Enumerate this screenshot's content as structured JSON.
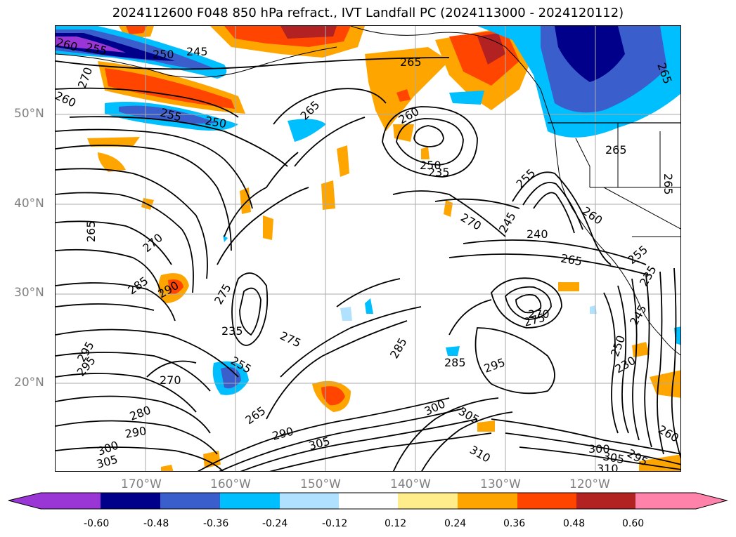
{
  "title": "2024112600 F048 850 hPa refract., IVT Landfall PC (2024113000 - 2024120112)",
  "lat_labels": [
    "50°N",
    "40°N",
    "30°N",
    "20°N"
  ],
  "lon_labels": [
    "170°W",
    "160°W",
    "150°W",
    "140°W",
    "130°W",
    "120°W"
  ],
  "contour_labels": {
    "l1": "260",
    "l2": "255",
    "l3": "250",
    "l4": "245",
    "l5": "270",
    "l6": "260",
    "l7": "255",
    "l8": "250",
    "l9": "265",
    "l10": "265",
    "l11": "260",
    "l12": "250",
    "l13": "235",
    "l14": "255",
    "l15": "245",
    "l16": "240",
    "l17": "260",
    "l18": "270",
    "l19": "265",
    "l20": "265",
    "l21": "270",
    "l22": "285",
    "l23": "290",
    "l24": "275",
    "l25": "235",
    "l26": "275",
    "l27": "285",
    "l28": "285",
    "l29": "295",
    "l30": "270",
    "l31": "275",
    "l32": "270",
    "l33": "295",
    "l34": "280",
    "l35": "290",
    "l36": "265",
    "l37": "290",
    "l38": "305",
    "l39": "300",
    "l40": "305",
    "l41": "310",
    "l42": "305",
    "l43": "300",
    "l44": "310",
    "l45": "295",
    "l46": "260",
    "l47": "250",
    "l48": "230",
    "l49": "255",
    "l50": "265",
    "l51": "295",
    "l52": "305",
    "l53": "300",
    "l54": "265",
    "l55": "265",
    "l56": "245",
    "l57": "235",
    "l58": "255"
  },
  "colorbar": {
    "ticks": [
      "-0.60",
      "-0.48",
      "-0.36",
      "-0.24",
      "-0.12",
      "0.12",
      "0.24",
      "0.36",
      "0.48",
      "0.60"
    ],
    "colors": [
      "#9a35d6",
      "#00008b",
      "#3a5fcd",
      "#00bfff",
      "#b0e2ff",
      "#ffffff",
      "#ffec8b",
      "#ffa500",
      "#ff4500",
      "#b22222",
      "#ff82ab"
    ]
  },
  "colors": {
    "grid": "#aaaaaa",
    "contour": "#000000",
    "coast": "#000000"
  }
}
